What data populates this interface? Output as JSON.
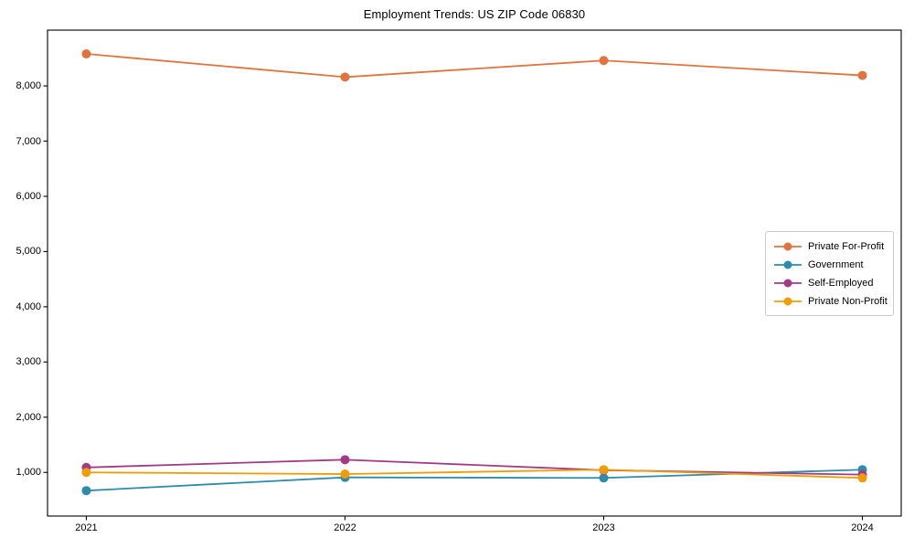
{
  "figure": {
    "background": "#ffffff",
    "frame_color": "#000000"
  },
  "chart_data": {
    "type": "line",
    "title": "Employment Trends: US ZIP Code 06830",
    "xlabel": "",
    "ylabel": "",
    "x": [
      2021,
      2022,
      2023,
      2024
    ],
    "x_tick_labels": [
      "2021",
      "2022",
      "2023",
      "2024"
    ],
    "series": [
      {
        "name": "Private For-Profit",
        "color": "#e1743e",
        "values": [
          8580,
          8160,
          8460,
          8190
        ]
      },
      {
        "name": "Government",
        "color": "#2e8bac",
        "values": [
          670,
          910,
          900,
          1050
        ]
      },
      {
        "name": "Self-Employed",
        "color": "#a23b85",
        "values": [
          1090,
          1230,
          1040,
          960
        ]
      },
      {
        "name": "Private Non-Profit",
        "color": "#f09d05",
        "values": [
          1000,
          970,
          1050,
          900
        ]
      }
    ],
    "yticks": [
      1000,
      2000,
      3000,
      4000,
      5000,
      6000,
      7000,
      8000
    ],
    "ytick_labels": [
      "1,000",
      "2,000",
      "3,000",
      "4,000",
      "5,000",
      "6,000",
      "7,000",
      "8,000"
    ],
    "ylim": [
      210,
      9010
    ],
    "grid": false,
    "marker": "circle",
    "legend_position": "center-right"
  }
}
